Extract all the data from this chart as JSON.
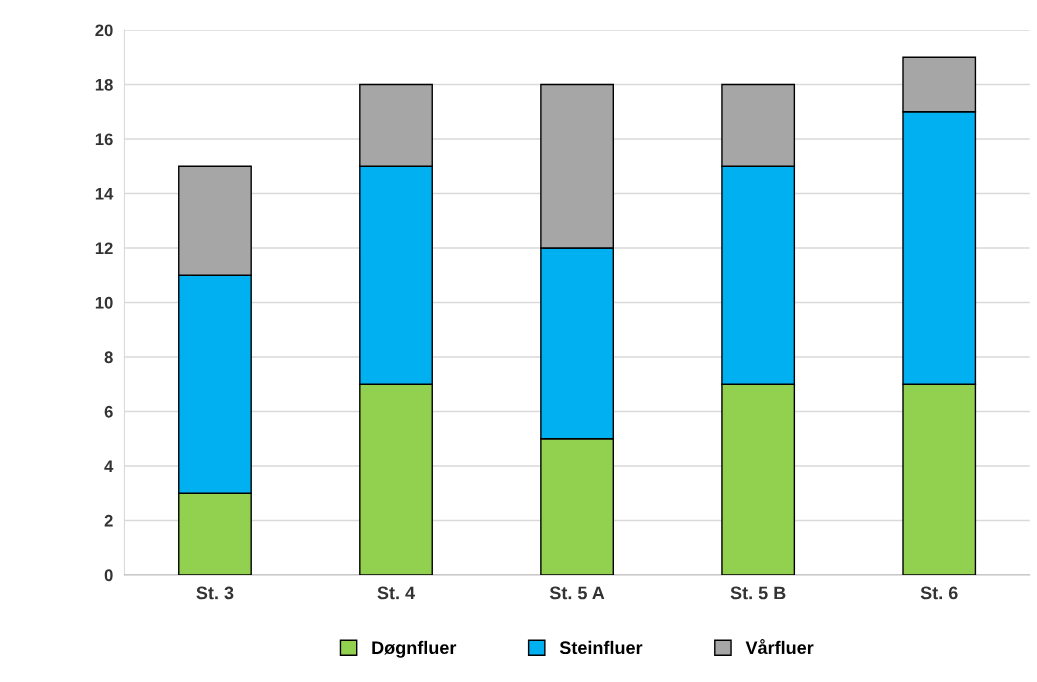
{
  "chart_data": {
    "type": "bar",
    "stacked": true,
    "categories": [
      "St. 3",
      "St. 4",
      "St. 5 A",
      "St. 5 B",
      "St. 6"
    ],
    "series": [
      {
        "name": "Døgnfluer",
        "color": "#92d050",
        "values": [
          3,
          7,
          5,
          7,
          7
        ]
      },
      {
        "name": "Steinfluer",
        "color": "#00b0f0",
        "values": [
          8,
          8,
          7,
          8,
          10
        ]
      },
      {
        "name": "Vårfluer",
        "color": "#a6a6a6",
        "values": [
          4,
          3,
          6,
          3,
          2
        ]
      }
    ],
    "ylim": [
      0,
      20
    ],
    "yticks": [
      0,
      2,
      4,
      6,
      8,
      10,
      12,
      14,
      16,
      18,
      20
    ],
    "grid": "y",
    "legend": "bottom"
  }
}
